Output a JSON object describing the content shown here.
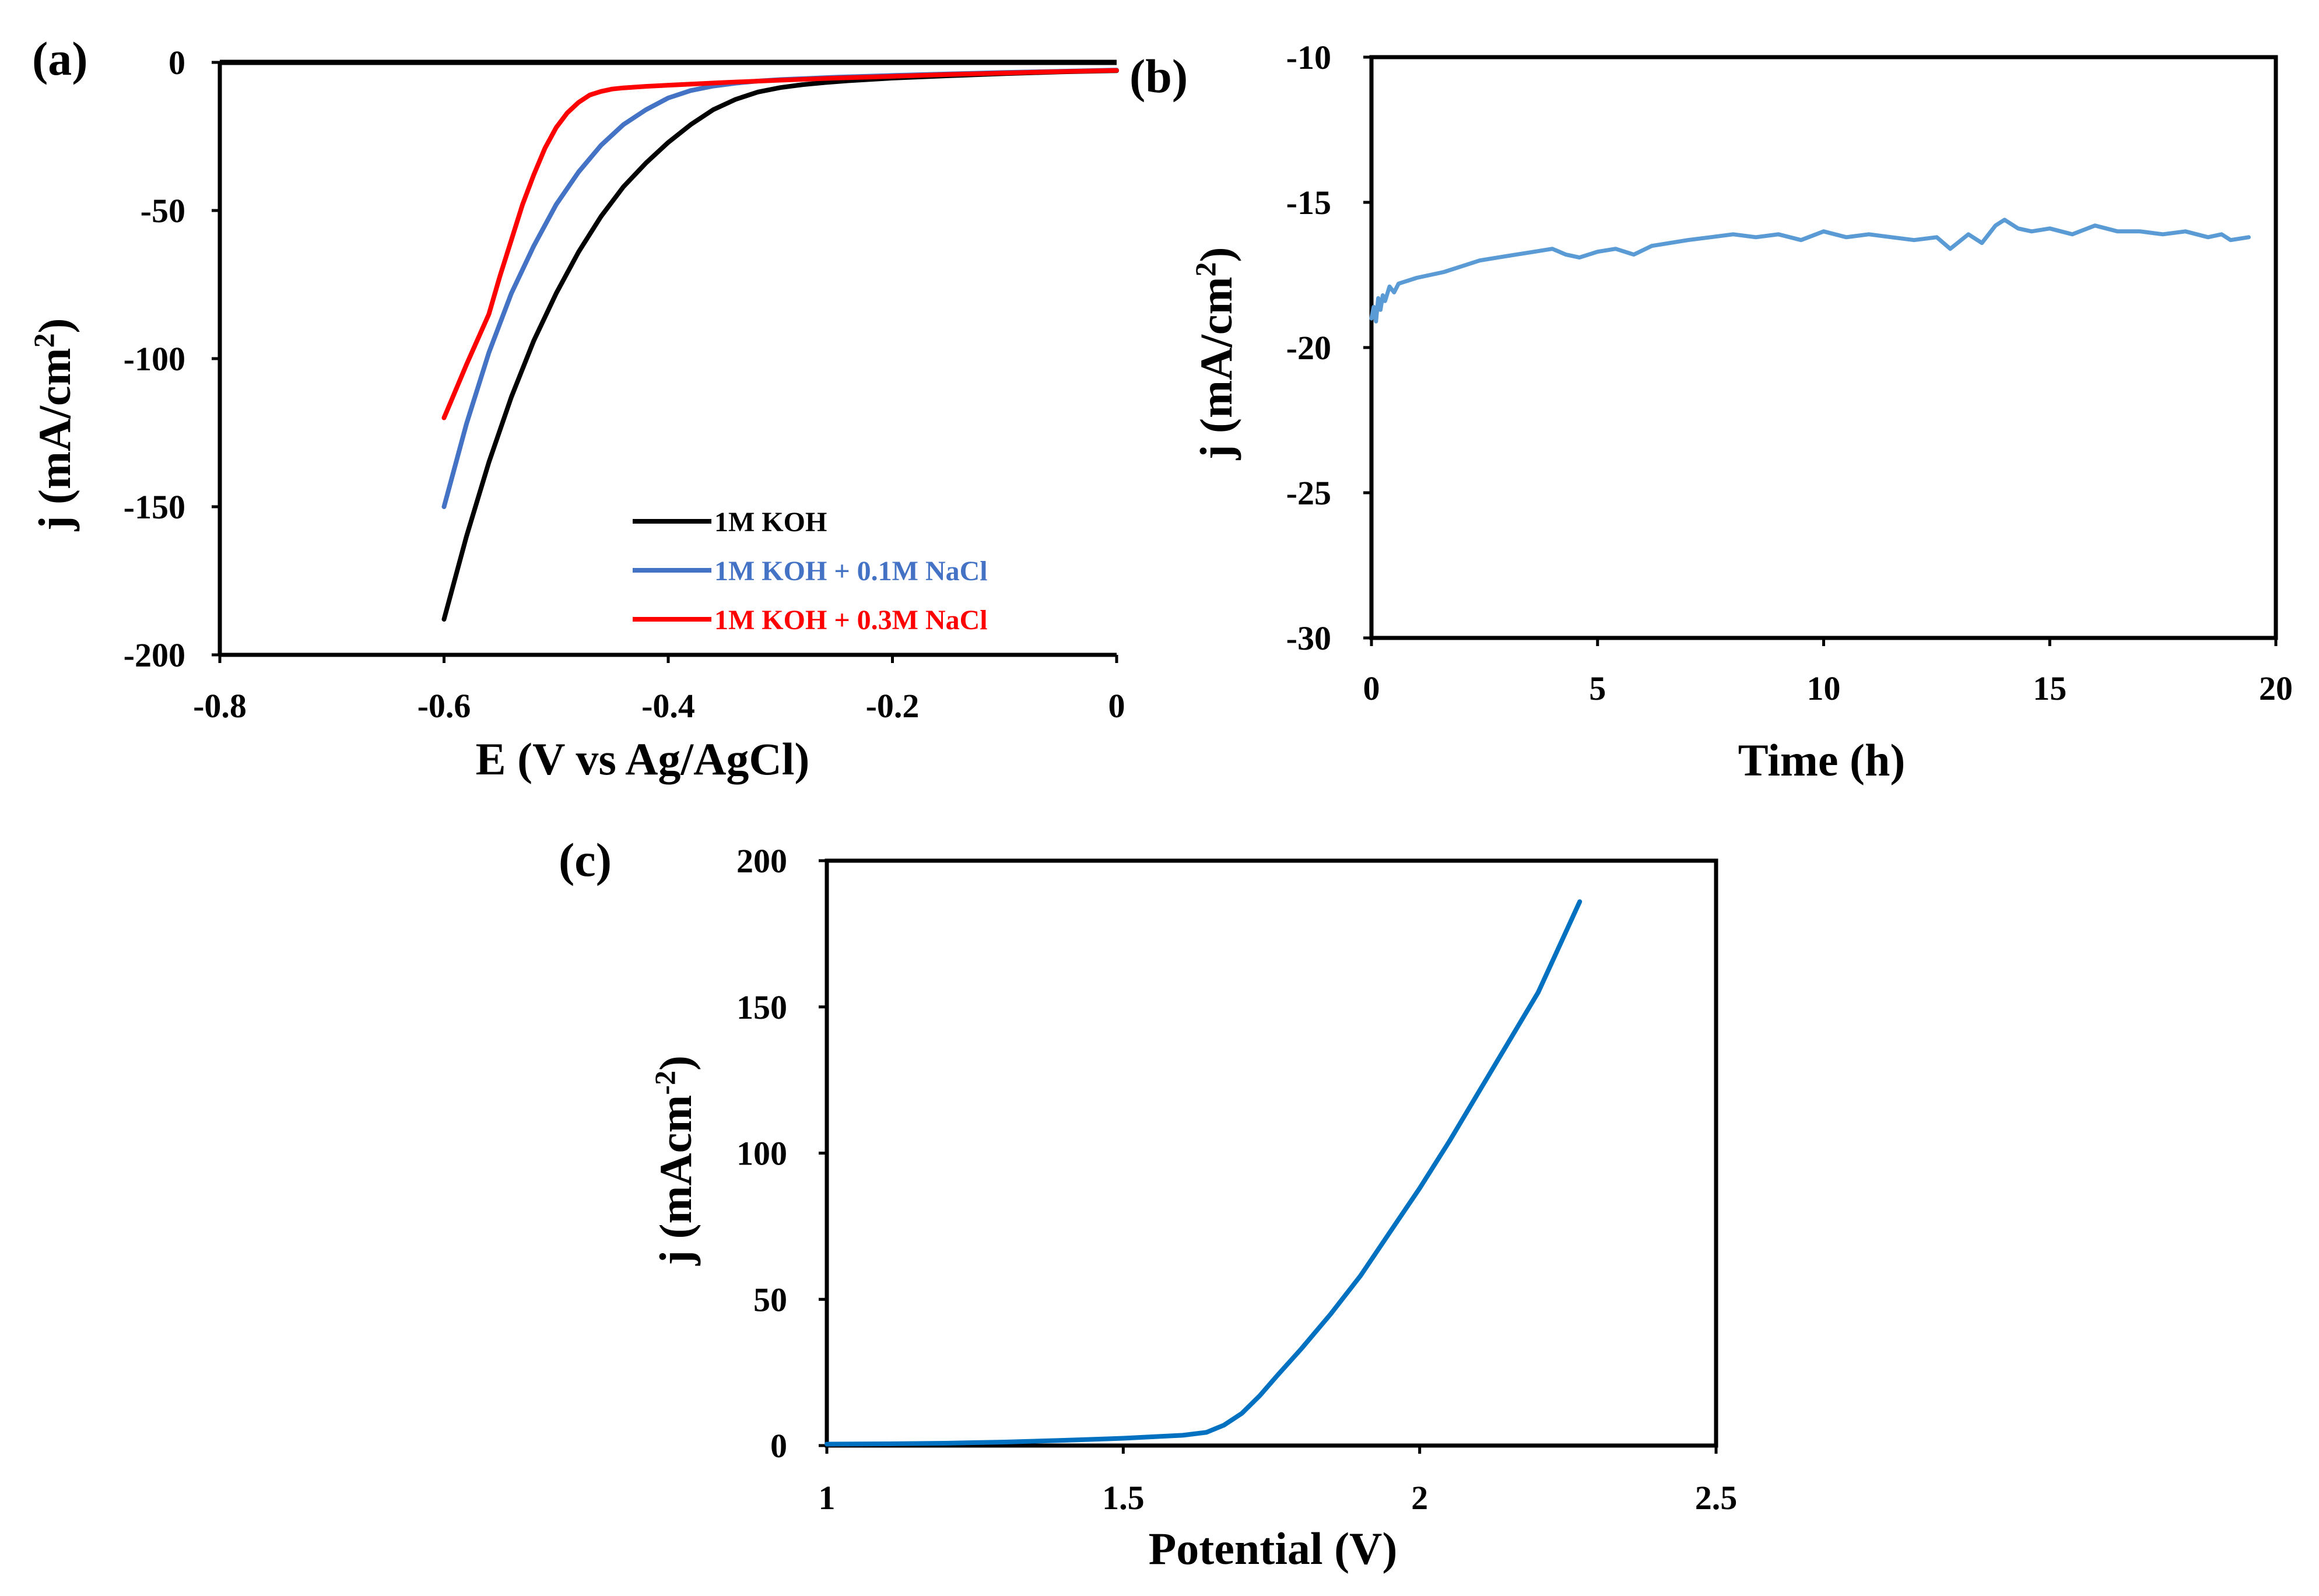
{
  "colors": {
    "black": "#000000",
    "blue": "#4472C4",
    "red": "#FF0000",
    "lightblue": "#5B9BD5",
    "darkblue": "#0070C0"
  },
  "panels": [
    {
      "label": "(a)",
      "xlabel": "E (V vs Ag/AgCl)",
      "ylabel": "j (mA/cm",
      "ylabel_sup": "2",
      "ylabel_end": ")"
    },
    {
      "label": "(b)",
      "xlabel": "Time (h)",
      "ylabel": "j (mA/cm",
      "ylabel_sup": "2",
      "ylabel_end": ")"
    },
    {
      "label": "(c)",
      "xlabel": "Potential (V)",
      "ylabel": "j (mAcm",
      "ylabel_sup": "-2",
      "ylabel_end": ")"
    }
  ],
  "chart_data": [
    {
      "type": "line",
      "panel": "(a)",
      "xlabel": "E (V vs Ag/AgCl)",
      "ylabel": "j (mA/cm2)",
      "xlim": [
        -0.8,
        0
      ],
      "ylim": [
        -200,
        0
      ],
      "xticks": [
        -0.8,
        -0.6,
        -0.4,
        -0.2,
        0
      ],
      "xtick_labels": [
        "-0.8",
        "-0.6",
        "-0.4",
        "-0.2",
        "0"
      ],
      "yticks": [
        0,
        -50,
        -100,
        -150,
        -200
      ],
      "ytick_labels": [
        "0",
        "-50",
        "-100",
        "-150",
        "-200"
      ],
      "legend": "bottom-right",
      "series": [
        {
          "name": "1M KOH",
          "color": "#000000",
          "x": [
            -0.6,
            -0.58,
            -0.56,
            -0.54,
            -0.52,
            -0.5,
            -0.48,
            -0.46,
            -0.44,
            -0.42,
            -0.4,
            -0.38,
            -0.36,
            -0.34,
            -0.32,
            -0.3,
            -0.28,
            -0.26,
            -0.24,
            -0.2,
            -0.15,
            -0.1,
            -0.05,
            0
          ],
          "y": [
            -188,
            -160,
            -135,
            -113,
            -94,
            -78,
            -64,
            -52,
            -42,
            -34,
            -27,
            -21,
            -16,
            -12.5,
            -10,
            -8.5,
            -7.5,
            -6.8,
            -6.2,
            -5.3,
            -4.5,
            -3.8,
            -3.2,
            -2.8
          ]
        },
        {
          "name": "1M KOH + 0.1M NaCl",
          "color": "#4472C4",
          "x": [
            -0.6,
            -0.58,
            -0.56,
            -0.54,
            -0.52,
            -0.5,
            -0.48,
            -0.46,
            -0.44,
            -0.42,
            -0.4,
            -0.38,
            -0.36,
            -0.34,
            -0.32,
            -0.3,
            -0.25,
            -0.2,
            -0.15,
            -0.1,
            -0.05,
            0
          ],
          "y": [
            -150,
            -122,
            -98,
            -78,
            -62,
            -48,
            -37,
            -28,
            -21,
            -16,
            -12,
            -9.5,
            -8,
            -7,
            -6.3,
            -5.8,
            -5,
            -4.4,
            -3.9,
            -3.4,
            -3,
            -2.6
          ]
        },
        {
          "name": "1M KOH + 0.3M NaCl",
          "color": "#FF0000",
          "x": [
            -0.6,
            -0.58,
            -0.56,
            -0.55,
            -0.54,
            -0.53,
            -0.52,
            -0.51,
            -0.5,
            -0.49,
            -0.48,
            -0.47,
            -0.46,
            -0.45,
            -0.44,
            -0.42,
            -0.4,
            -0.35,
            -0.3,
            -0.25,
            -0.2,
            -0.15,
            -0.1,
            -0.05,
            0
          ],
          "y": [
            -120,
            -102,
            -85,
            -72,
            -60,
            -48,
            -38,
            -29,
            -22,
            -17,
            -13.5,
            -11,
            -9.8,
            -9,
            -8.6,
            -8.1,
            -7.7,
            -6.8,
            -6,
            -5.3,
            -4.7,
            -4.1,
            -3.6,
            -3.1,
            -2.7
          ]
        }
      ]
    },
    {
      "type": "line",
      "panel": "(b)",
      "xlabel": "Time (h)",
      "ylabel": "j (mA/cm2)",
      "xlim": [
        0,
        20
      ],
      "ylim": [
        -30,
        -10
      ],
      "xticks": [
        0,
        5,
        10,
        15,
        20
      ],
      "xtick_labels": [
        "0",
        "5",
        "10",
        "15",
        "20"
      ],
      "yticks": [
        -10,
        -15,
        -20,
        -25,
        -30
      ],
      "ytick_labels": [
        "-10",
        "-15",
        "-20",
        "-25",
        "-30"
      ],
      "series": [
        {
          "color": "#5B9BD5",
          "x": [
            0,
            0.05,
            0.1,
            0.15,
            0.2,
            0.25,
            0.3,
            0.4,
            0.5,
            0.6,
            0.8,
            1.0,
            1.3,
            1.6,
            2.0,
            2.4,
            2.8,
            3.2,
            3.6,
            4.0,
            4.3,
            4.6,
            5.0,
            5.4,
            5.8,
            6.2,
            6.6,
            7.0,
            7.5,
            8.0,
            8.5,
            9.0,
            9.5,
            10.0,
            10.5,
            11.0,
            11.5,
            12.0,
            12.5,
            12.8,
            13.2,
            13.5,
            13.8,
            14.0,
            14.3,
            14.6,
            15.0,
            15.5,
            16.0,
            16.5,
            17.0,
            17.5,
            18.0,
            18.5,
            18.8,
            19.0,
            19.4
          ],
          "y": [
            -19.0,
            -18.6,
            -19.1,
            -18.3,
            -18.7,
            -18.2,
            -18.4,
            -17.9,
            -18.1,
            -17.8,
            -17.7,
            -17.6,
            -17.5,
            -17.4,
            -17.2,
            -17.0,
            -16.9,
            -16.8,
            -16.7,
            -16.6,
            -16.8,
            -16.9,
            -16.7,
            -16.6,
            -16.8,
            -16.5,
            -16.4,
            -16.3,
            -16.2,
            -16.1,
            -16.2,
            -16.1,
            -16.3,
            -16.0,
            -16.2,
            -16.1,
            -16.2,
            -16.3,
            -16.2,
            -16.6,
            -16.1,
            -16.4,
            -15.8,
            -15.6,
            -15.9,
            -16.0,
            -15.9,
            -16.1,
            -15.8,
            -16.0,
            -16.0,
            -16.1,
            -16.0,
            -16.2,
            -16.1,
            -16.3,
            -16.2
          ]
        }
      ]
    },
    {
      "type": "line",
      "panel": "(c)",
      "xlabel": "Potential (V)",
      "ylabel": "j (mAcm-2)",
      "xlim": [
        1,
        2.5
      ],
      "ylim": [
        0,
        200
      ],
      "xticks": [
        1,
        1.5,
        2,
        2.5
      ],
      "xtick_labels": [
        "1",
        "1.5",
        "2",
        "2.5"
      ],
      "yticks": [
        0,
        50,
        100,
        150,
        200
      ],
      "ytick_labels": [
        "0",
        "50",
        "100",
        "150",
        "200"
      ],
      "series": [
        {
          "color": "#0070C0",
          "x": [
            1.0,
            1.1,
            1.2,
            1.3,
            1.4,
            1.5,
            1.6,
            1.64,
            1.67,
            1.7,
            1.73,
            1.76,
            1.8,
            1.85,
            1.9,
            1.95,
            2.0,
            2.05,
            2.1,
            2.15,
            2.2,
            2.27
          ],
          "y": [
            0.5,
            0.6,
            0.8,
            1.2,
            1.8,
            2.5,
            3.5,
            4.5,
            7,
            11,
            17,
            24,
            33,
            45,
            58,
            73,
            88,
            104,
            121,
            138,
            155,
            186
          ]
        }
      ]
    }
  ]
}
